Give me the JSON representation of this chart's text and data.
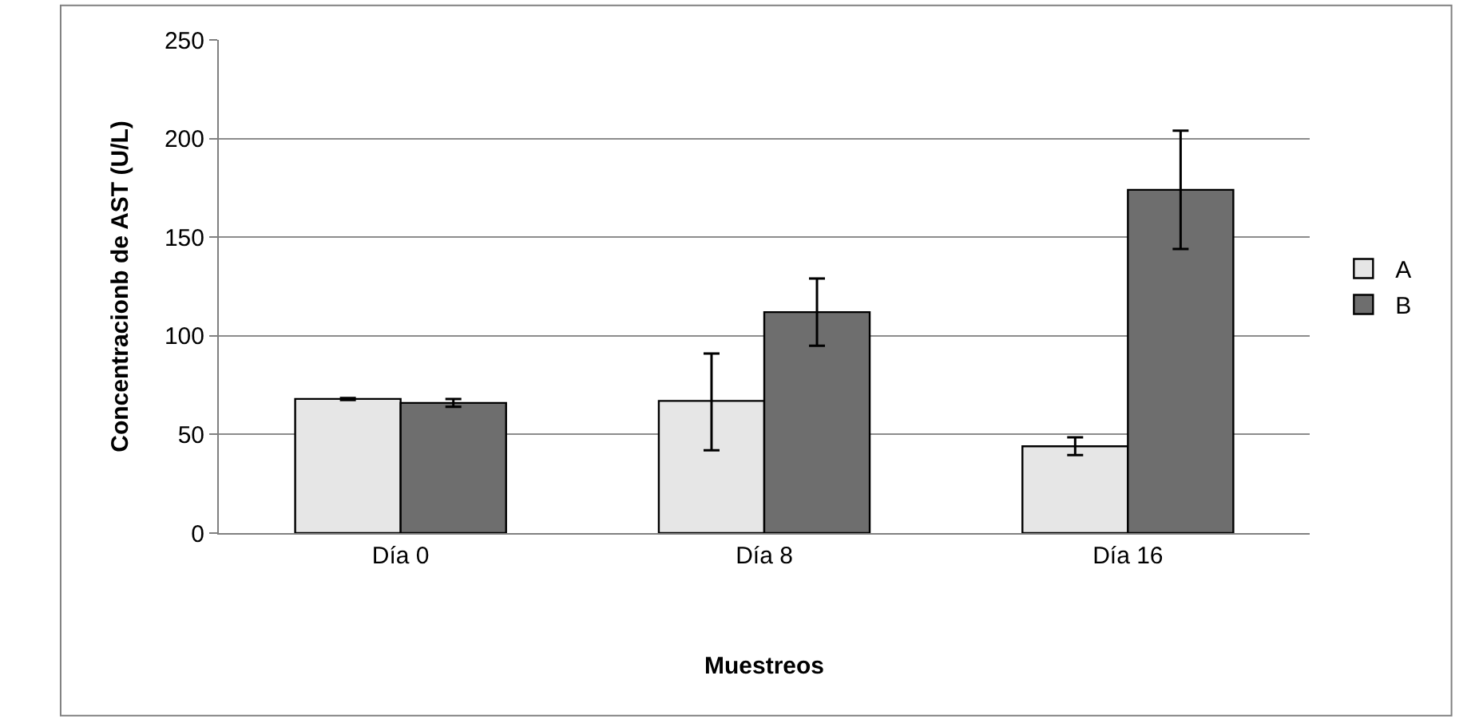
{
  "chart_data": {
    "type": "bar",
    "xlabel": "Muestreos",
    "ylabel": "Concentracionb de AST (U/L)",
    "categories": [
      "Día 0",
      "Día 8",
      "Día 16"
    ],
    "series": [
      {
        "name": "A",
        "color": "#e6e6e6",
        "values": [
          68,
          67,
          44
        ],
        "errors": [
          0.5,
          [
            42,
            91
          ],
          4.5
        ]
      },
      {
        "name": "B",
        "color": "#6e6e6e",
        "values": [
          66,
          112,
          174
        ],
        "errors": [
          2,
          [
            95,
            129
          ],
          30
        ]
      }
    ],
    "ylim": [
      0,
      250
    ],
    "yticks": [
      0,
      50,
      100,
      150,
      200,
      250
    ],
    "grid": "y",
    "legend": "right"
  }
}
